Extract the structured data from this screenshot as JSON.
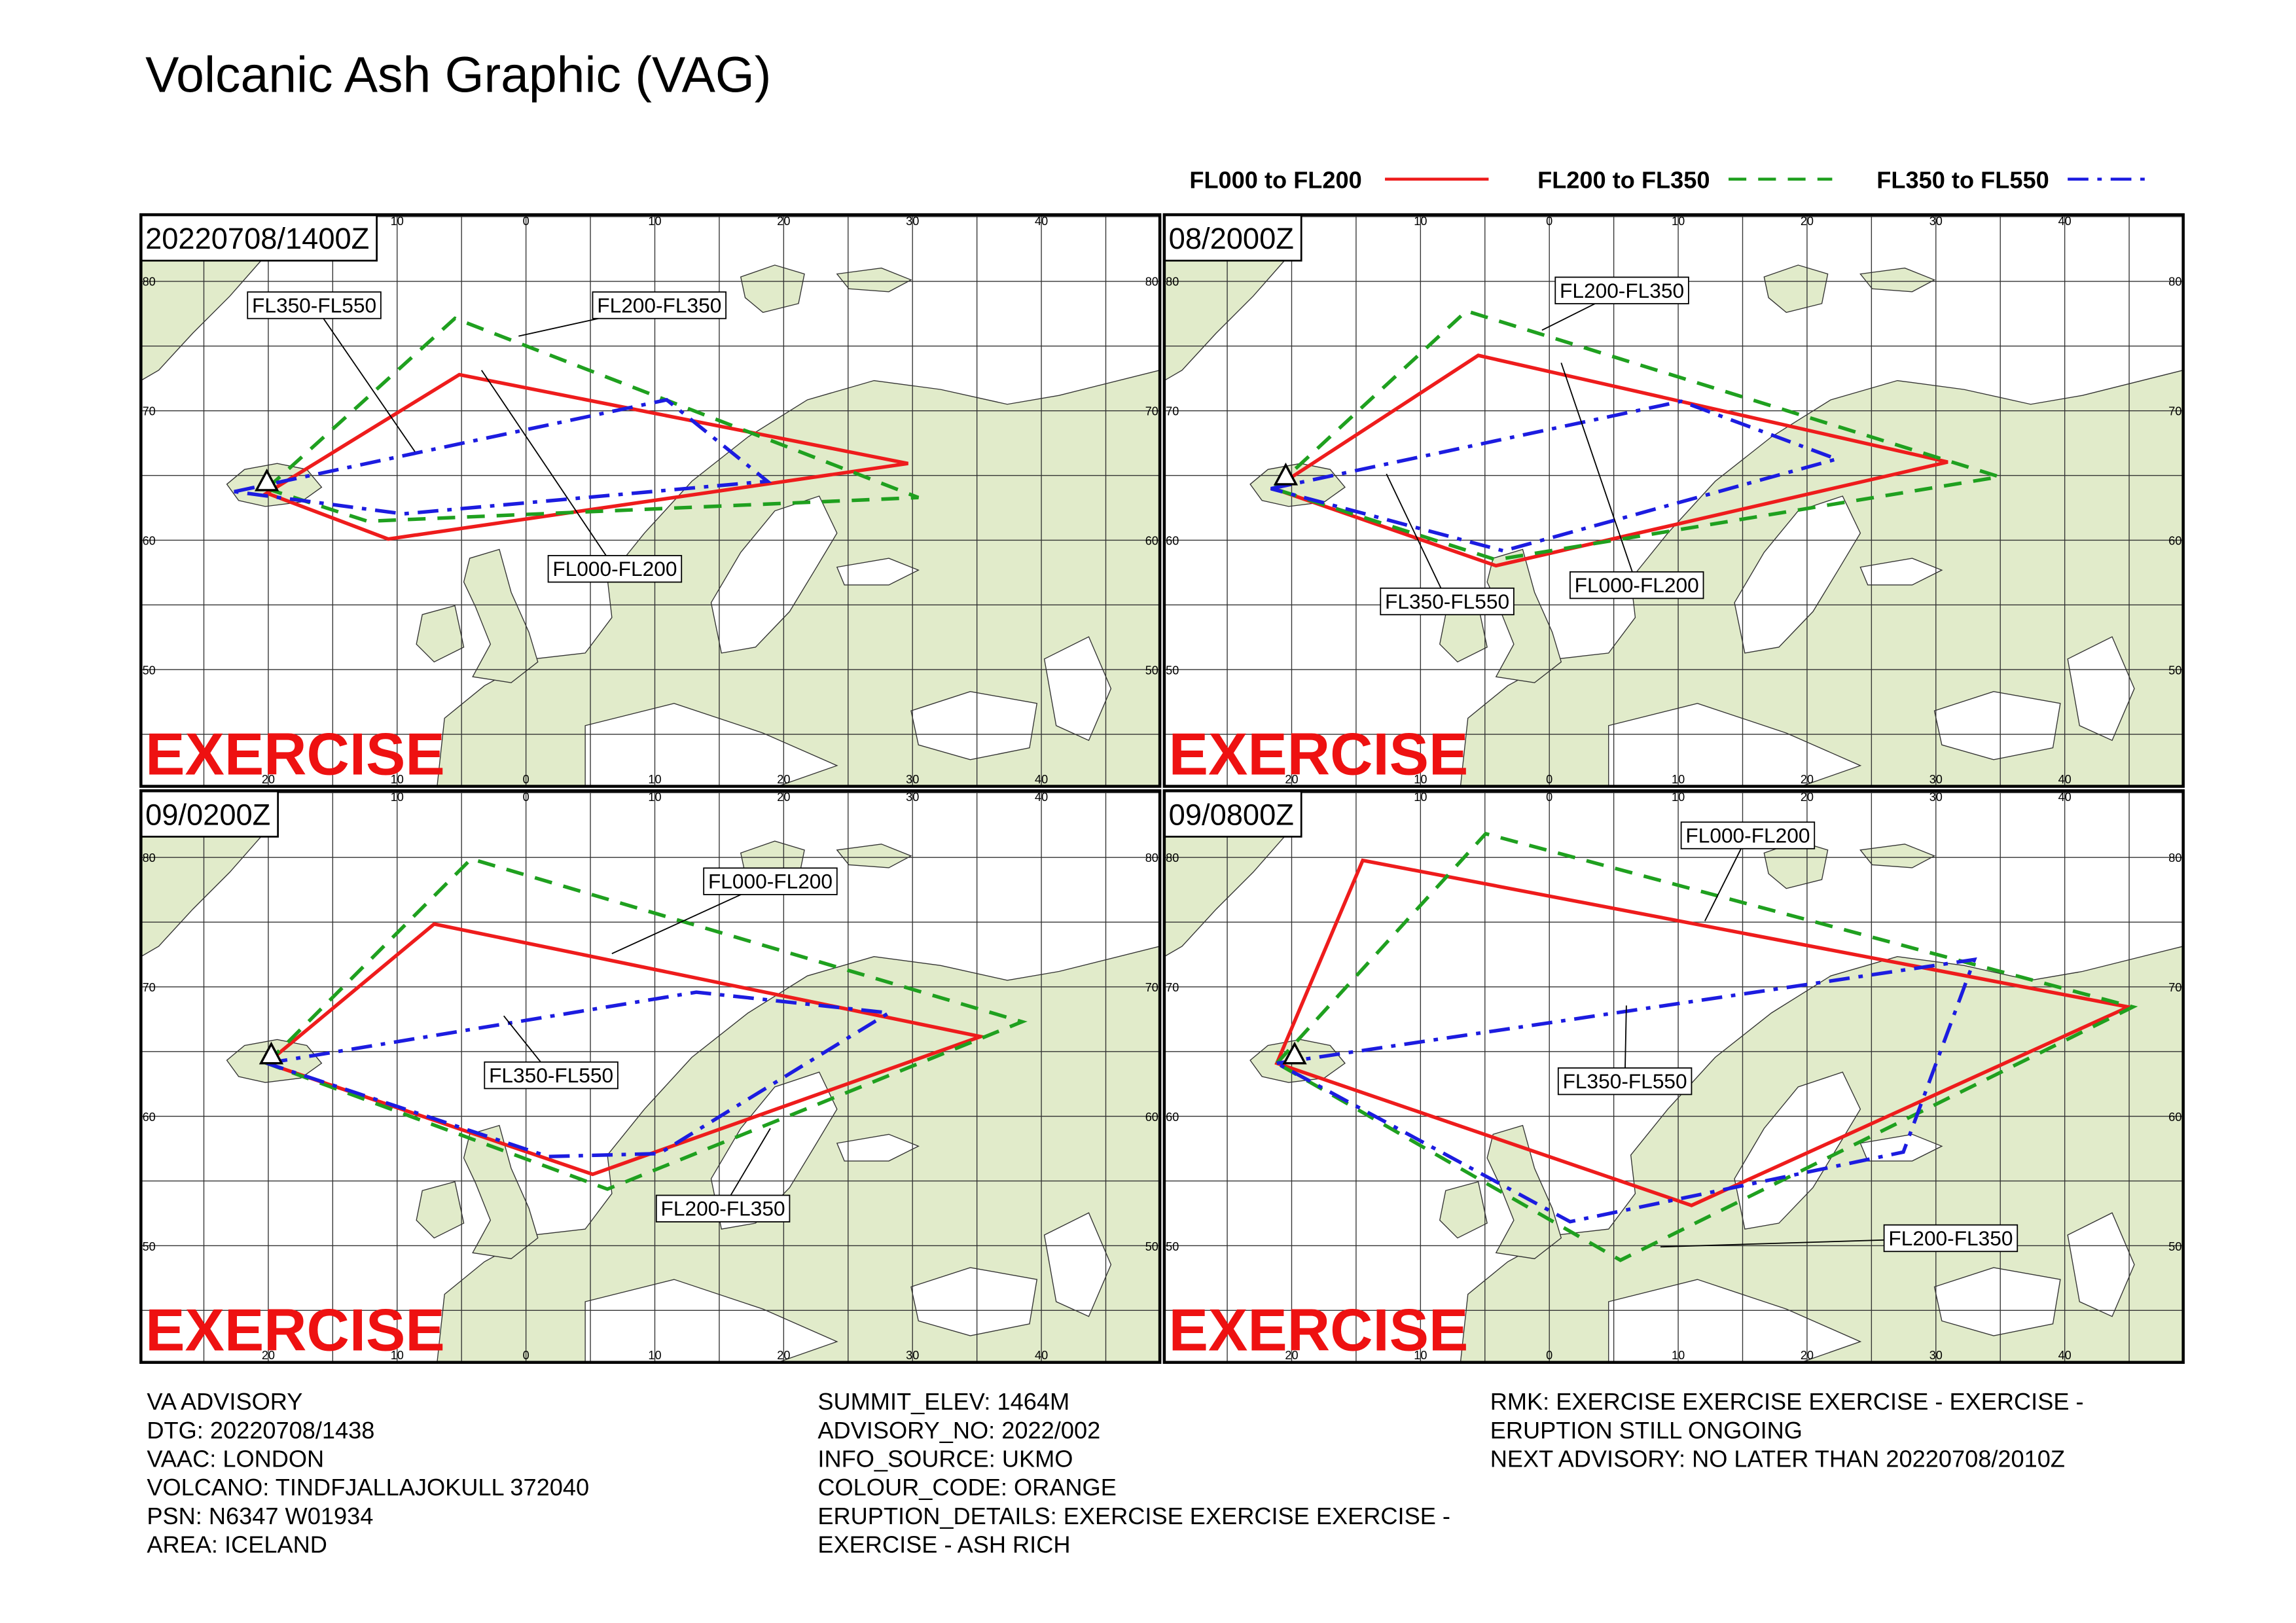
{
  "header": {
    "title": "Volcanic Ash Graphic (VAG)"
  },
  "legend": [
    {
      "name": "FL000 to FL200",
      "color": "#ee1c1c"
    },
    {
      "name": "FL200 to FL350",
      "color": "#1fa01f"
    },
    {
      "name": "FL350 to FL550",
      "color": "#1c1ce0"
    }
  ],
  "map": {
    "lon_labels": [
      "20",
      "10",
      "0",
      "10",
      "20",
      "30",
      "40"
    ],
    "lat_labels": [
      "80",
      "70",
      "60",
      "50"
    ]
  },
  "panels": [
    {
      "time": "20220708/1400Z",
      "watermark": "EXERCISE",
      "labels": [
        "FL350-FL550",
        "FL200-FL350",
        "FL000-FL200"
      ]
    },
    {
      "time": "08/2000Z",
      "watermark": "EXERCISE",
      "labels": [
        "FL200-FL350",
        "FL350-FL550",
        "FL000-FL200"
      ]
    },
    {
      "time": "09/0200Z",
      "watermark": "EXERCISE",
      "labels": [
        "FL000-FL200",
        "FL350-FL550",
        "FL200-FL350"
      ]
    },
    {
      "time": "09/0800Z",
      "watermark": "EXERCISE",
      "labels": [
        "FL000-FL200",
        "FL350-FL550",
        "FL200-FL350"
      ]
    }
  ],
  "footer": {
    "columns": [
      [
        "VA ADVISORY",
        "DTG: 20220708/1438",
        "VAAC: LONDON",
        "VOLCANO: TINDFJALLAJOKULL 372040",
        "PSN: N6347 W01934",
        "AREA: ICELAND"
      ],
      [
        "SUMMIT_ELEV: 1464M",
        "ADVISORY_NO: 2022/002",
        "INFO_SOURCE: UKMO",
        "COLOUR_CODE: ORANGE",
        "ERUPTION_DETAILS: EXERCISE EXERCISE EXERCISE -",
        "EXERCISE - ASH RICH"
      ],
      [
        "RMK: EXERCISE EXERCISE EXERCISE - EXERCISE -",
        "ERUPTION STILL ONGOING",
        "NEXT ADVISORY: NO LATER THAN 20220708/2010Z"
      ]
    ]
  }
}
